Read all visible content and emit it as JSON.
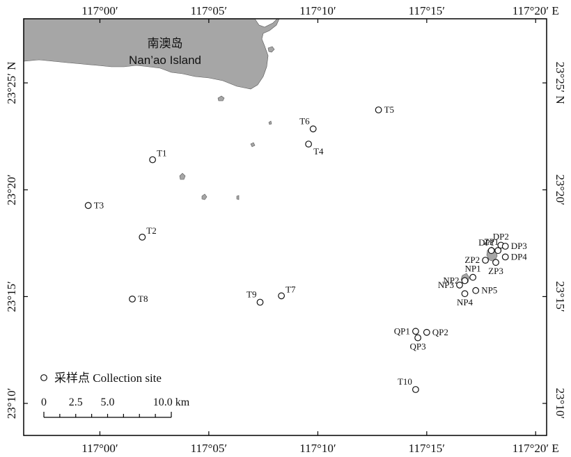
{
  "map": {
    "colors": {
      "land": "#a6a6a6",
      "frame": "#000000",
      "marker_stroke": "#111111"
    },
    "lon_ticks": [
      "117°00′",
      "117°05′",
      "117°10′",
      "117°15′",
      "117°20′ E"
    ],
    "lon_values": [
      117.0,
      117.0833,
      117.1667,
      117.25,
      117.3333
    ],
    "lat_ticks_left": [
      "23°25′ N",
      "23°20′",
      "23°15′",
      "23°10′"
    ],
    "lat_ticks_right": [
      "23°25′ N",
      "23°20′",
      "23°15′",
      "23°10′"
    ],
    "lat_values": [
      23.4167,
      23.3333,
      23.25,
      23.1667
    ],
    "island_label_cn": "南澳岛",
    "island_label_en": "Nan’ao Island",
    "legend": {
      "symbol": "circle",
      "label": "采样点 Collection site"
    },
    "scale_bar": {
      "labels": [
        "0",
        "2.5",
        "5.0",
        "10.0 km"
      ],
      "values_km": [
        0,
        2.5,
        5.0,
        10.0
      ]
    },
    "sites": [
      {
        "name": "T1",
        "lon": 117.0403,
        "lat": 23.3568,
        "label_pos": "ne"
      },
      {
        "name": "T2",
        "lon": 117.0324,
        "lat": 23.2964,
        "label_pos": "ne"
      },
      {
        "name": "T3",
        "lon": 116.9911,
        "lat": 23.3211,
        "label_pos": "e"
      },
      {
        "name": "T4",
        "lon": 117.1596,
        "lat": 23.369,
        "label_pos": "se"
      },
      {
        "name": "T5",
        "lon": 117.2131,
        "lat": 23.3956,
        "label_pos": "e"
      },
      {
        "name": "T6",
        "lon": 117.1631,
        "lat": 23.3808,
        "label_pos": "nw"
      },
      {
        "name": "T7",
        "lon": 117.1388,
        "lat": 23.2506,
        "label_pos": "ne"
      },
      {
        "name": "T8",
        "lon": 117.0248,
        "lat": 23.2481,
        "label_pos": "e"
      },
      {
        "name": "T9",
        "lon": 117.1225,
        "lat": 23.2456,
        "label_pos": "nw"
      },
      {
        "name": "T10",
        "lon": 117.2415,
        "lat": 23.1775,
        "label_pos": "nw"
      },
      {
        "name": "QP1",
        "lon": 117.2415,
        "lat": 23.2229,
        "label_pos": "w"
      },
      {
        "name": "QP2",
        "lon": 117.25,
        "lat": 23.2221,
        "label_pos": "e"
      },
      {
        "name": "QP3",
        "lon": 117.2432,
        "lat": 23.2179,
        "label_pos": "s"
      },
      {
        "name": "NP1",
        "lon": 117.2853,
        "lat": 23.265,
        "label_pos": "n"
      },
      {
        "name": "NP2",
        "lon": 117.2791,
        "lat": 23.2624,
        "label_pos": "w"
      },
      {
        "name": "NP3",
        "lon": 117.2751,
        "lat": 23.259,
        "label_pos": "w"
      },
      {
        "name": "NP4",
        "lon": 117.2791,
        "lat": 23.2523,
        "label_pos": "s"
      },
      {
        "name": "NP5",
        "lon": 117.2875,
        "lat": 23.2547,
        "label_pos": "e"
      },
      {
        "name": "ZP1",
        "lon": 117.2994,
        "lat": 23.2859,
        "label_pos": "n"
      },
      {
        "name": "ZP2",
        "lon": 117.2949,
        "lat": 23.2784,
        "label_pos": "w"
      },
      {
        "name": "ZP3",
        "lon": 117.3028,
        "lat": 23.2767,
        "label_pos": "s"
      },
      {
        "name": "DP1",
        "lon": 117.3045,
        "lat": 23.2859,
        "label_pos": "nw"
      },
      {
        "name": "DP2",
        "lon": 117.3067,
        "lat": 23.2901,
        "label_pos": "n"
      },
      {
        "name": "DP3",
        "lon": 117.3101,
        "lat": 23.2893,
        "label_pos": "e"
      },
      {
        "name": "DP4",
        "lon": 117.3101,
        "lat": 23.2809,
        "label_pos": "e"
      }
    ]
  }
}
